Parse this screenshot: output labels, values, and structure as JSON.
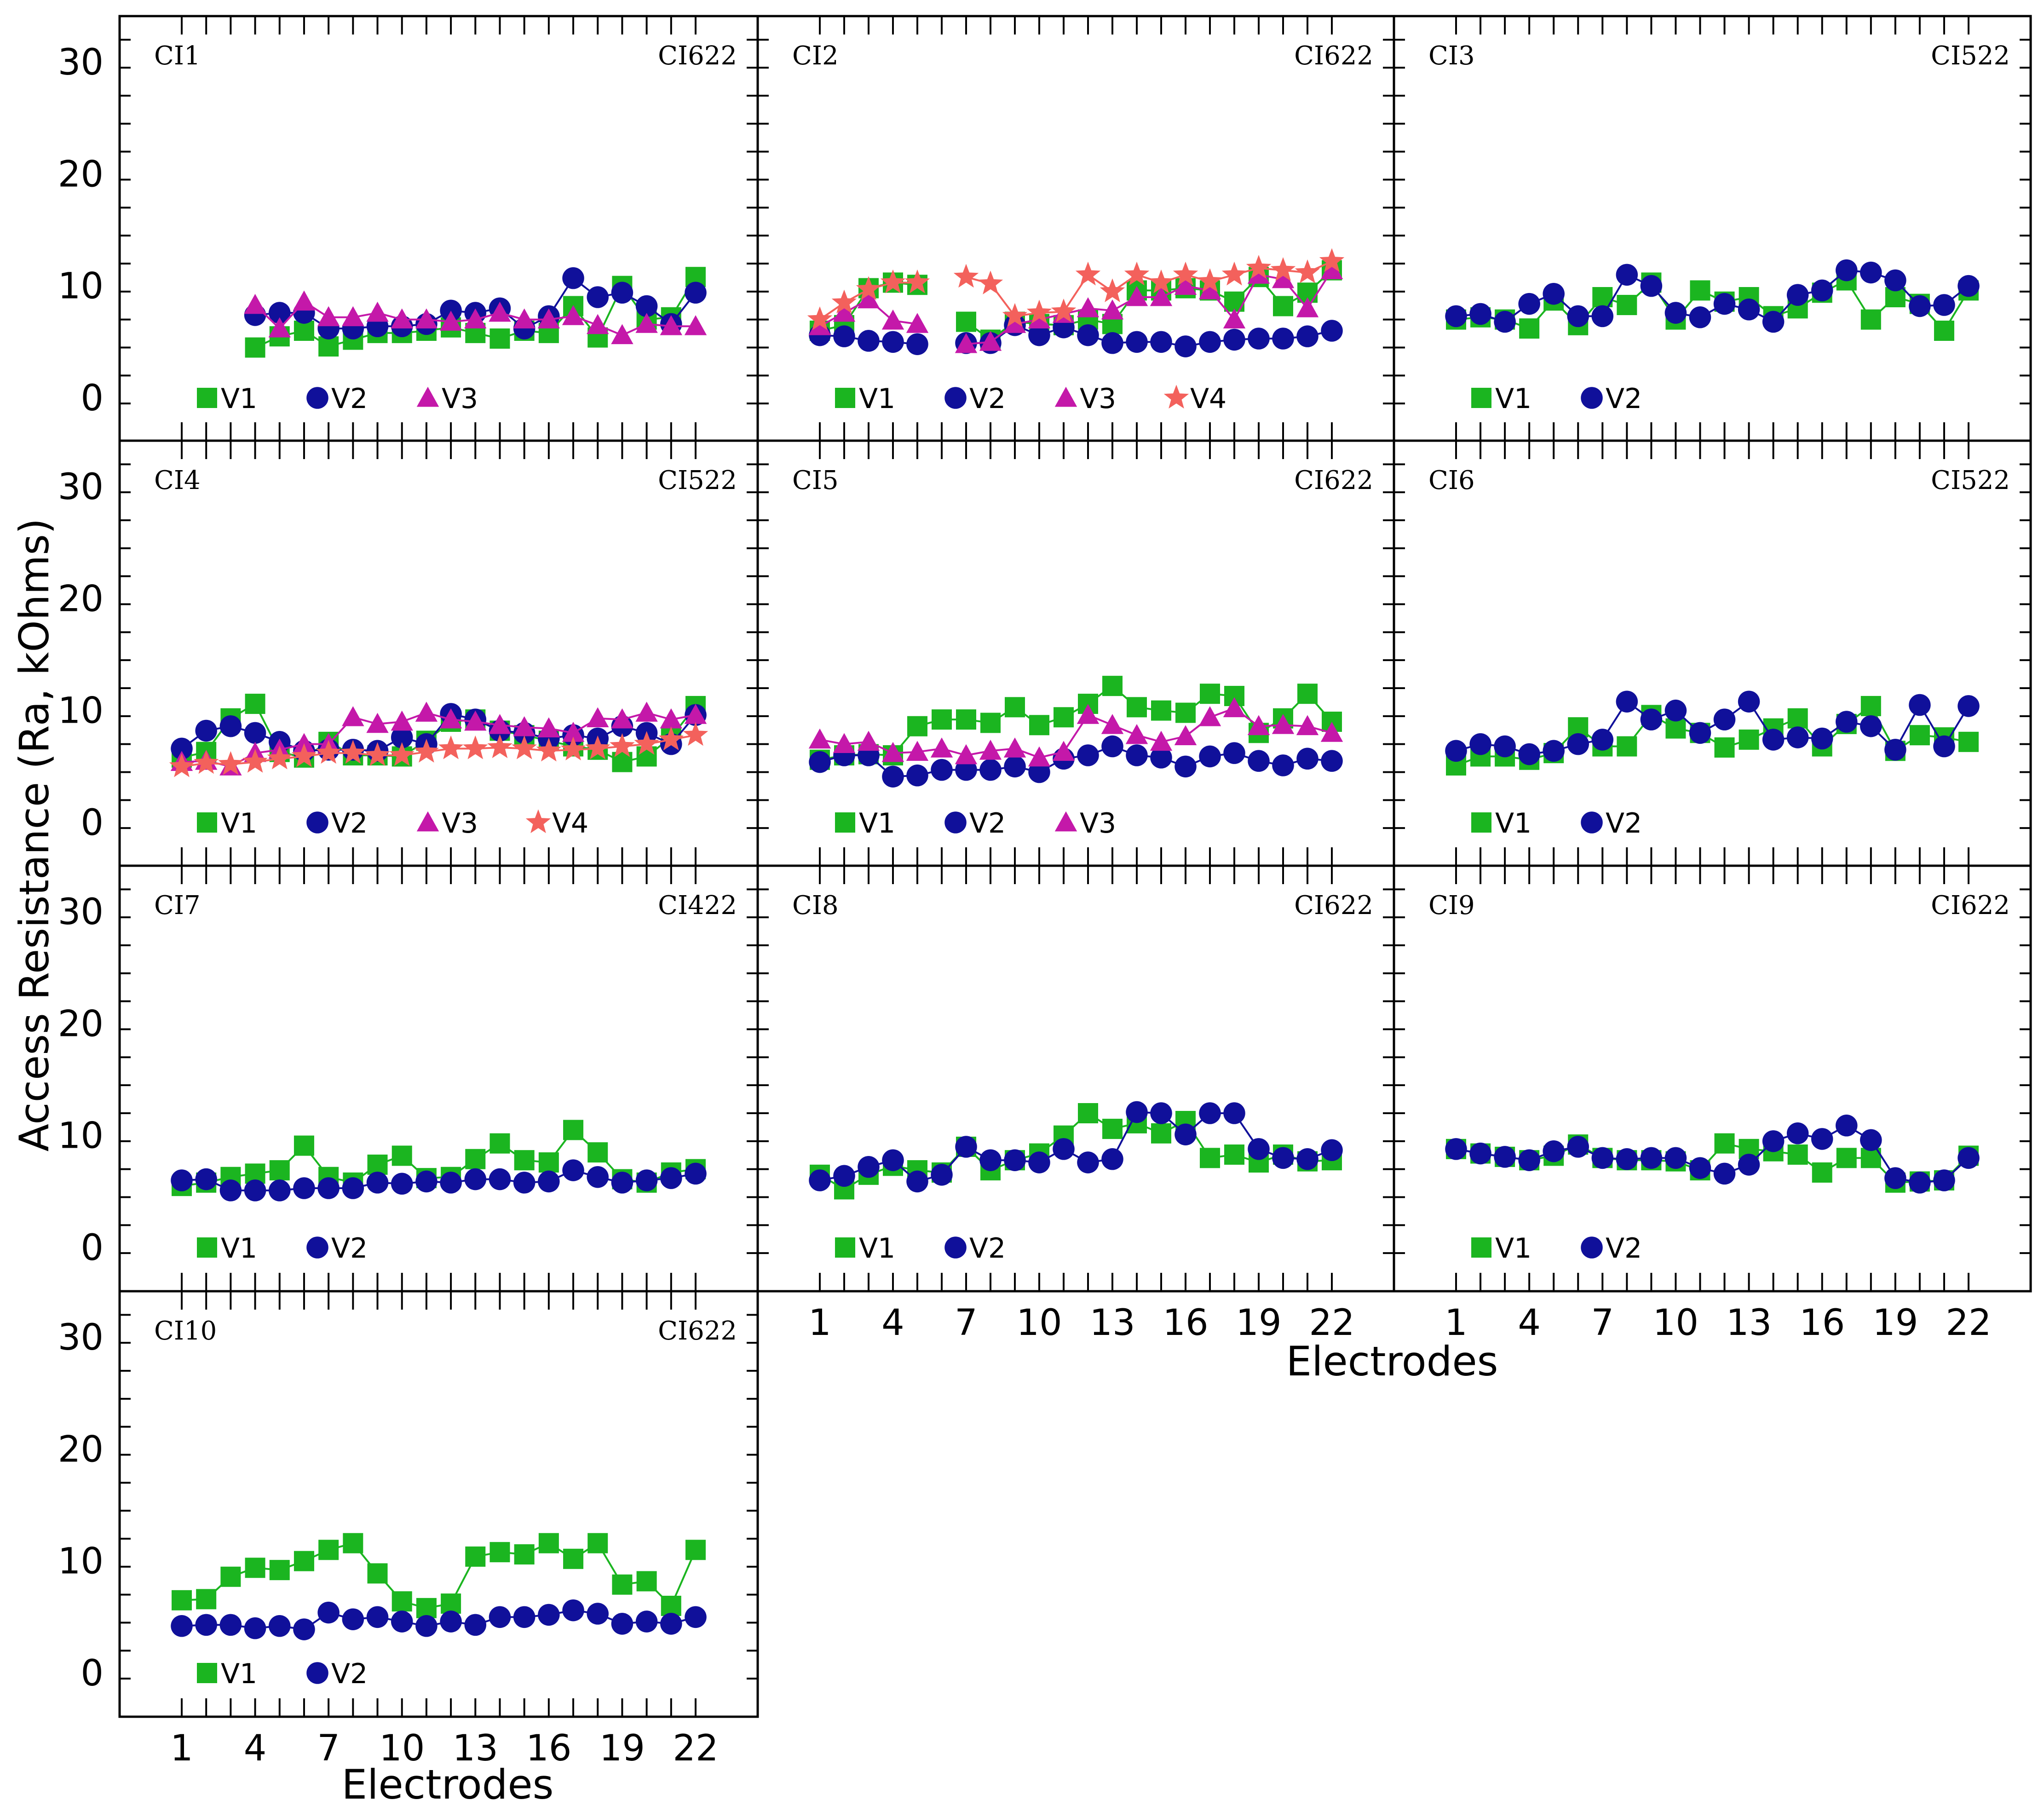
{
  "figure": {
    "ylabel": "Access Resistance (Ra, kOhms)",
    "xlabel": "Electrodes",
    "xticks": [
      1,
      4,
      7,
      10,
      13,
      16,
      19,
      22
    ],
    "yticks": [
      0,
      10,
      20,
      30
    ],
    "colors": {
      "V1": "#1bb520",
      "V2": "#10109a",
      "V3": "#c418a9",
      "V4": "#f3615c"
    },
    "markers": {
      "V1": "square",
      "V2": "circle",
      "V3": "triangle",
      "V4": "star"
    }
  },
  "chart_data": [
    {
      "type": "line",
      "subject": "CI1",
      "device": "CI622",
      "x": [
        1,
        2,
        3,
        4,
        5,
        6,
        7,
        8,
        9,
        10,
        11,
        12,
        13,
        14,
        15,
        16,
        17,
        18,
        19,
        20,
        21,
        22
      ],
      "xlim": [
        0,
        23
      ],
      "ylim": [
        -3,
        34
      ],
      "grid": false,
      "legend": "bottom-left",
      "series": [
        {
          "name": "V1",
          "values": [
            null,
            null,
            null,
            4.5,
            5.5,
            6,
            4.6,
            5.2,
            5.8,
            5.8,
            6,
            6.3,
            5.8,
            5.3,
            6,
            5.8,
            8.2,
            5.4,
            10,
            7,
            7.2,
            10.8
          ]
        },
        {
          "name": "V2",
          "values": [
            null,
            null,
            null,
            7.4,
            7.6,
            7.6,
            6.2,
            6.2,
            6.4,
            6.4,
            6.6,
            7.8,
            7.6,
            8,
            6.2,
            7.3,
            10.7,
            9,
            9.4,
            8.2,
            6.6,
            9.4
          ]
        },
        {
          "name": "V3",
          "values": [
            null,
            null,
            null,
            8.3,
            6.2,
            8.6,
            7.2,
            7.2,
            7.6,
            7,
            7,
            6.8,
            7,
            7.6,
            7,
            7,
            7.3,
            6.5,
            5.6,
            6.6,
            6.4,
            6.4
          ]
        }
      ]
    },
    {
      "type": "line",
      "subject": "CI2",
      "device": "CI622",
      "x": [
        1,
        2,
        3,
        4,
        5,
        6,
        7,
        8,
        9,
        10,
        11,
        12,
        13,
        14,
        15,
        16,
        17,
        18,
        19,
        20,
        21,
        22
      ],
      "xlim": [
        0,
        23
      ],
      "ylim": [
        -3,
        34
      ],
      "grid": false,
      "legend": "bottom-left",
      "series": [
        {
          "name": "V1",
          "values": [
            6,
            6.5,
            9.8,
            10.3,
            10.1,
            null,
            6.8,
            5.2,
            6.8,
            6.6,
            6.5,
            7,
            6.6,
            9.6,
            9.6,
            9.8,
            9.6,
            8.6,
            10.8,
            8.2,
            9.4,
            11.4
          ]
        },
        {
          "name": "V2",
          "values": [
            5.6,
            5.5,
            5.1,
            5,
            4.8,
            null,
            4.9,
            4.9,
            6.5,
            5.6,
            6.3,
            5.6,
            4.9,
            5,
            5,
            4.6,
            5,
            5.2,
            5.3,
            5.3,
            5.5,
            6
          ]
        },
        {
          "name": "V3",
          "values": [
            6.4,
            7.6,
            8.8,
            6.9,
            6.6,
            null,
            4.8,
            5,
            6.6,
            7,
            7.5,
            8,
            7.8,
            9,
            9,
            10,
            9.6,
            7,
            11,
            10.6,
            8,
            11.4
          ]
        },
        {
          "name": "V4",
          "values": [
            7,
            8.5,
            9.7,
            10.3,
            10.3,
            null,
            10.8,
            10.2,
            7.3,
            7.6,
            7.7,
            11,
            9.5,
            11,
            10.3,
            11,
            10.4,
            11,
            11.6,
            11.4,
            11.2,
            12.2
          ]
        }
      ]
    },
    {
      "type": "line",
      "subject": "CI3",
      "device": "CI522",
      "x": [
        1,
        2,
        3,
        4,
        5,
        6,
        7,
        8,
        9,
        10,
        11,
        12,
        13,
        14,
        15,
        16,
        17,
        18,
        19,
        20,
        21,
        22
      ],
      "xlim": [
        0,
        23
      ],
      "ylim": [
        -3,
        34
      ],
      "grid": false,
      "legend": "bottom-left",
      "series": [
        {
          "name": "V1",
          "values": [
            7,
            7.2,
            7,
            6.2,
            8.7,
            6.5,
            9,
            8.3,
            10.3,
            7,
            9.6,
            8.6,
            9,
            7.3,
            8,
            9.4,
            10.5,
            7,
            9,
            8.4,
            6,
            9.6
          ]
        },
        {
          "name": "V2",
          "values": [
            7.3,
            7.5,
            6.8,
            8.4,
            9.3,
            7.3,
            7.3,
            11,
            10,
            7.6,
            7.2,
            8.4,
            7.9,
            6.8,
            9.2,
            9.6,
            11.4,
            11.2,
            10.5,
            8.2,
            8.3,
            10
          ]
        }
      ]
    },
    {
      "type": "line",
      "subject": "CI4",
      "device": "CI522",
      "x": [
        1,
        2,
        3,
        4,
        5,
        6,
        7,
        8,
        9,
        10,
        11,
        12,
        13,
        14,
        15,
        16,
        17,
        18,
        19,
        20,
        21,
        22
      ],
      "xlim": [
        0,
        23
      ],
      "ylim": [
        -3,
        34
      ],
      "grid": false,
      "legend": "bottom-left",
      "series": [
        {
          "name": "V1",
          "values": [
            5.8,
            6.3,
            9.3,
            10.6,
            6.3,
            5.8,
            7.2,
            6,
            6,
            5.9,
            7.3,
            9,
            9.2,
            8.2,
            7.8,
            7.3,
            6.8,
            6.5,
            5.4,
            5.9,
            7.6,
            10.4
          ]
        },
        {
          "name": "V2",
          "values": [
            6.6,
            8.2,
            8.6,
            8,
            7.2,
            6.4,
            6.5,
            6.5,
            6.4,
            7.6,
            7,
            9.7,
            9.2,
            8.2,
            8,
            7.5,
            7.8,
            7.5,
            8.6,
            8,
            7,
            9.6
          ]
        },
        {
          "name": "V3",
          "values": [
            5.4,
            5.5,
            5,
            6.2,
            6.5,
            7,
            7,
            9.4,
            8.8,
            9,
            9.8,
            9.2,
            9,
            8.7,
            8.5,
            8.4,
            8,
            9.3,
            9.2,
            9.8,
            9.2,
            9.6
          ]
        },
        {
          "name": "V4",
          "values": [
            5,
            5.3,
            5.2,
            5.4,
            5.7,
            5.9,
            6.2,
            6.2,
            6,
            6,
            6.3,
            6.6,
            6.6,
            6.7,
            6.6,
            6.4,
            6.5,
            6.6,
            6.8,
            7,
            7.4,
            7.8
          ]
        }
      ]
    },
    {
      "type": "line",
      "subject": "CI5",
      "device": "CI622",
      "x": [
        1,
        2,
        3,
        4,
        5,
        6,
        7,
        8,
        9,
        10,
        11,
        12,
        13,
        14,
        15,
        16,
        17,
        18,
        19,
        20,
        21,
        22
      ],
      "xlim": [
        0,
        23
      ],
      "ylim": [
        -3,
        34
      ],
      "grid": false,
      "legend": "bottom-left",
      "series": [
        {
          "name": "V1",
          "values": [
            5.6,
            6,
            6.1,
            6,
            8.6,
            9.2,
            9.2,
            8.9,
            10.3,
            8.7,
            9.4,
            10.6,
            12.2,
            10.3,
            10,
            9.8,
            11.5,
            11.3,
            8,
            9.3,
            11.5,
            9
          ]
        },
        {
          "name": "V2",
          "values": [
            5.4,
            6,
            6,
            4.1,
            4.2,
            4.7,
            4.7,
            4.7,
            5,
            4.5,
            5.7,
            6,
            6.8,
            6,
            5.8,
            5,
            5.9,
            6.2,
            5.5,
            5.1,
            5.7,
            5.5
          ]
        },
        {
          "name": "V3",
          "values": [
            7.4,
            7,
            7.2,
            6.2,
            6.3,
            6.6,
            6,
            6.4,
            6.6,
            5.8,
            6.3,
            9.6,
            8.7,
            7.8,
            7.2,
            7.7,
            9.4,
            10.2,
            8.6,
            8.7,
            8.6,
            8
          ]
        }
      ]
    },
    {
      "type": "line",
      "subject": "CI6",
      "device": "CI522",
      "x": [
        1,
        2,
        3,
        4,
        5,
        6,
        7,
        8,
        9,
        10,
        11,
        12,
        13,
        14,
        15,
        16,
        17,
        18,
        19,
        20,
        21,
        22
      ],
      "xlim": [
        0,
        23
      ],
      "ylim": [
        -3,
        34
      ],
      "grid": false,
      "legend": "bottom-left",
      "series": [
        {
          "name": "V1",
          "values": [
            5.1,
            5.9,
            5.9,
            5.6,
            6.2,
            8.5,
            6.8,
            6.8,
            9.6,
            8.4,
            8,
            6.7,
            7.4,
            8.4,
            9.3,
            6.8,
            8.8,
            10.4,
            6.4,
            7.8,
            7.6,
            7.2
          ]
        },
        {
          "name": "V2",
          "values": [
            6.4,
            7,
            6.8,
            6.1,
            6.4,
            7,
            7.4,
            10.8,
            9.2,
            10,
            8,
            9.2,
            10.8,
            7.4,
            7.6,
            7.5,
            9,
            8.6,
            6.5,
            10.5,
            6.8,
            10.4
          ]
        }
      ]
    },
    {
      "type": "line",
      "subject": "CI7",
      "device": "CI422",
      "x": [
        1,
        2,
        3,
        4,
        5,
        6,
        7,
        8,
        9,
        10,
        11,
        12,
        13,
        14,
        15,
        16,
        17,
        18,
        19,
        20,
        21,
        22
      ],
      "xlim": [
        0,
        23
      ],
      "ylim": [
        -3,
        34
      ],
      "grid": false,
      "legend": "bottom-left",
      "series": [
        {
          "name": "V1",
          "values": [
            5.5,
            5.8,
            6.3,
            6.6,
            6.9,
            9.1,
            6.3,
            5.8,
            7.4,
            8.2,
            6.2,
            6.3,
            7.9,
            9.3,
            7.8,
            7.6,
            10.5,
            8.5,
            6.1,
            5.8,
            6.7,
            7
          ]
        },
        {
          "name": "V2",
          "values": [
            6,
            6.1,
            5.1,
            5.1,
            5.1,
            5.3,
            5.3,
            5.3,
            5.8,
            5.7,
            5.9,
            5.8,
            6.1,
            6.1,
            5.8,
            5.9,
            6.9,
            6.3,
            5.8,
            6,
            6.2,
            6.6
          ]
        }
      ]
    },
    {
      "type": "line",
      "subject": "CI8",
      "device": "CI622",
      "x": [
        1,
        2,
        3,
        4,
        5,
        6,
        7,
        8,
        9,
        10,
        11,
        12,
        13,
        14,
        15,
        16,
        17,
        18,
        19,
        20,
        21,
        22
      ],
      "xlim": [
        0,
        23
      ],
      "ylim": [
        -3,
        34
      ],
      "grid": false,
      "legend": "bottom-left",
      "series": [
        {
          "name": "V1",
          "values": [
            6.5,
            5.2,
            6.5,
            7.3,
            6.9,
            6.7,
            9,
            6.9,
            7.8,
            8.4,
            10,
            12,
            10.6,
            11.1,
            10.2,
            11.3,
            8,
            8.3,
            7.6,
            8.3,
            7.7,
            7.8
          ]
        },
        {
          "name": "V2",
          "values": [
            6,
            6.4,
            7.2,
            7.8,
            5.9,
            6.5,
            9,
            7.8,
            7.8,
            7.6,
            8.8,
            7.6,
            7.9,
            12.1,
            12,
            10.1,
            12,
            12,
            8.8,
            8,
            7.9,
            8.7
          ]
        }
      ]
    },
    {
      "type": "line",
      "subject": "CI9",
      "device": "CI622",
      "x": [
        1,
        2,
        3,
        4,
        5,
        6,
        7,
        8,
        9,
        10,
        11,
        12,
        13,
        14,
        15,
        16,
        17,
        18,
        19,
        20,
        21,
        22
      ],
      "xlim": [
        0,
        23
      ],
      "ylim": [
        -3,
        34
      ],
      "grid": false,
      "legend": "bottom-left",
      "series": [
        {
          "name": "V1",
          "values": [
            8.8,
            8.4,
            8.1,
            7.8,
            8.2,
            9.2,
            8,
            7.8,
            7.8,
            7.7,
            6.9,
            9.3,
            8.8,
            8.6,
            8.3,
            6.7,
            8,
            8,
            5.8,
            5.9,
            6,
            8.2
          ]
        },
        {
          "name": "V2",
          "values": [
            8.8,
            8.4,
            8.1,
            7.8,
            8.6,
            9,
            8,
            7.9,
            8,
            8,
            7.1,
            6.6,
            7.4,
            9.5,
            10.2,
            9.7,
            10.9,
            9.6,
            6.2,
            5.8,
            6,
            8
          ]
        }
      ]
    },
    {
      "type": "line",
      "subject": "CI10",
      "device": "CI622",
      "x": [
        1,
        2,
        3,
        4,
        5,
        6,
        7,
        8,
        9,
        10,
        11,
        12,
        13,
        14,
        15,
        16,
        17,
        18,
        19,
        20,
        21,
        22
      ],
      "xlim": [
        0,
        23
      ],
      "ylim": [
        -3,
        34
      ],
      "grid": false,
      "legend": "bottom-left",
      "series": [
        {
          "name": "V1",
          "values": [
            6.5,
            6.6,
            8.6,
            9.4,
            9.2,
            10,
            11,
            11.6,
            8.9,
            6.4,
            5.8,
            6.2,
            10.4,
            10.8,
            10.6,
            11.6,
            10.2,
            11.6,
            7.9,
            8.2,
            6,
            11
          ]
        },
        {
          "name": "V2",
          "values": [
            4.2,
            4.3,
            4.3,
            4,
            4.2,
            3.9,
            5.4,
            4.8,
            5,
            4.6,
            4.2,
            4.6,
            4.3,
            5,
            5,
            5.2,
            5.6,
            5.3,
            4.4,
            4.6,
            4.4,
            5
          ]
        }
      ]
    }
  ]
}
